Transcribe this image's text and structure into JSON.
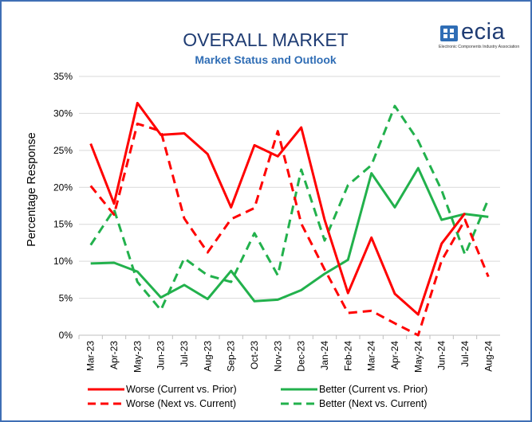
{
  "logo": {
    "word": "ecia",
    "subtitle": "Electronic Components Industry Association"
  },
  "chart_data": {
    "type": "line",
    "title": "OVERALL MARKET",
    "subtitle": "Market Status and Outlook",
    "xlabel": "",
    "ylabel": "Percentage Response",
    "ylim": [
      0,
      35
    ],
    "yticks": [
      "0%",
      "5%",
      "10%",
      "15%",
      "20%",
      "25%",
      "30%",
      "35%"
    ],
    "grid": true,
    "legend_position": "bottom",
    "categories": [
      "Mar-23",
      "Apr-23",
      "May-23",
      "Jun-23",
      "Jul-23",
      "Aug-23",
      "Sep-23",
      "Oct-23",
      "Nov-23",
      "Dec-23",
      "Jan-24",
      "Feb-24",
      "Mar-24",
      "Apr-24",
      "May-24",
      "Jun-24",
      "Jul-24",
      "Aug-24"
    ],
    "series": [
      {
        "name": "Worse (Current vs. Prior)",
        "color": "#ff0000",
        "dashed": false,
        "values": [
          25.9,
          17.8,
          31.4,
          27.1,
          27.3,
          24.5,
          17.3,
          25.7,
          24.2,
          28.1,
          15.6,
          5.7,
          13.2,
          5.6,
          2.8,
          12.4,
          16.5,
          null
        ]
      },
      {
        "name": "Better (Current vs. Prior)",
        "color": "#22b14c",
        "dashed": false,
        "values": [
          9.7,
          9.8,
          8.6,
          5.1,
          6.8,
          4.9,
          8.7,
          4.6,
          4.8,
          6.1,
          8.3,
          10.2,
          21.9,
          17.3,
          22.6,
          15.6,
          16.4,
          16.0
        ]
      },
      {
        "name": "Worse (Next vs. Current)",
        "color": "#ff0000",
        "dashed": true,
        "values": [
          20.2,
          16.3,
          28.6,
          27.6,
          15.8,
          11.2,
          15.7,
          17.2,
          27.6,
          15.1,
          8.9,
          3.0,
          3.3,
          1.6,
          0.0,
          10.1,
          15.6,
          7.9
        ]
      },
      {
        "name": "Better (Next vs. Current)",
        "color": "#22b14c",
        "dashed": true,
        "values": [
          12.2,
          17.0,
          7.2,
          3.4,
          10.4,
          8.1,
          7.2,
          13.8,
          8.1,
          22.4,
          12.8,
          20.3,
          23.0,
          31.0,
          26.3,
          19.6,
          10.9,
          18.4
        ]
      }
    ]
  }
}
